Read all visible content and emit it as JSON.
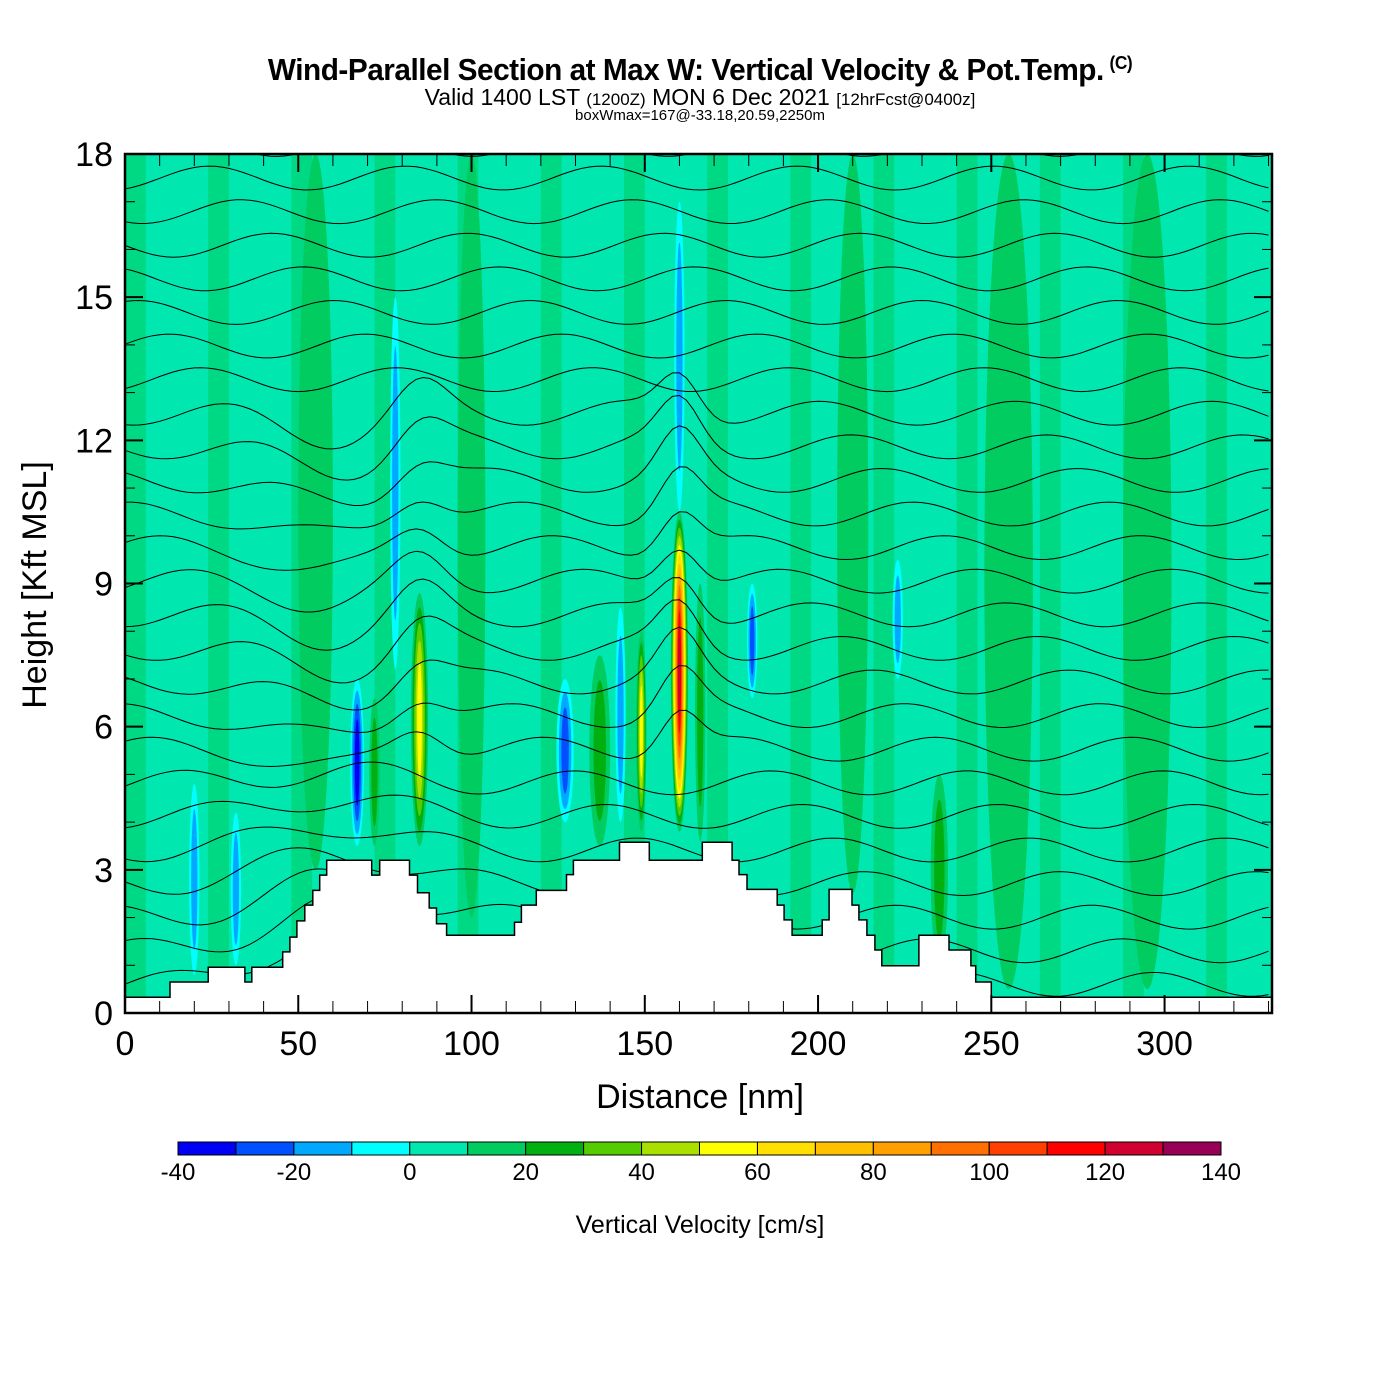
{
  "header": {
    "title": "Wind-Parallel Section at Max W: Vertical Velocity & Pot.Temp.",
    "copyright": "(C)",
    "valid_prefix": "Valid 1400 LST",
    "valid_utc": "(1200Z)",
    "valid_date": "MON 6 Dec 2021",
    "forecast": "[12hrFcst@0400z]",
    "box_wmax": "boxWmax=167@-33.18,20.59,2250m"
  },
  "chart_data": {
    "type": "heatmap",
    "title": "Wind-Parallel Section at Max W: Vertical Velocity & Pot.Temp.",
    "xlabel": "Distance [nm]",
    "ylabel": "Height [Kft MSL]",
    "xlim": [
      0,
      331
    ],
    "ylim": [
      0,
      18
    ],
    "xticks": [
      0,
      50,
      100,
      150,
      200,
      250,
      300
    ],
    "yticks": [
      0,
      3,
      6,
      9,
      12,
      15,
      18
    ],
    "x_minor_step": 10,
    "y_minor_step": 1,
    "colorbar": {
      "label": "Vertical Velocity [cm/s]",
      "placement": "bottom",
      "levels": [
        -40,
        -30,
        -20,
        -10,
        0,
        10,
        20,
        30,
        40,
        50,
        60,
        70,
        80,
        90,
        100,
        110,
        120,
        130,
        140
      ],
      "tick_labels": [
        "-40",
        "-20",
        "0",
        "20",
        "40",
        "60",
        "80",
        "100",
        "120",
        "140"
      ],
      "colors": [
        "#0000f4",
        "#0050ff",
        "#00a8ff",
        "#00ffff",
        "#00e8b0",
        "#00cc60",
        "#00b010",
        "#55cc00",
        "#aae000",
        "#ffff00",
        "#ffe000",
        "#ffc000",
        "#ffa000",
        "#ff7000",
        "#ff4000",
        "#ff0000",
        "#d00030",
        "#980058"
      ]
    },
    "background_value": 2,
    "w_features": [
      {
        "x": 20,
        "y0": 0.8,
        "y1": 4.8,
        "w": 3,
        "value": -15
      },
      {
        "x": 32,
        "y0": 1.0,
        "y1": 4.2,
        "w": 3,
        "value": -15
      },
      {
        "x": 55,
        "y0": 3.0,
        "y1": 18,
        "w": 10,
        "value": 12
      },
      {
        "x": 67,
        "y0": 3.5,
        "y1": 7.0,
        "w": 4,
        "value": -32
      },
      {
        "x": 72,
        "y0": 3.5,
        "y1": 6.6,
        "w": 3,
        "value": 25
      },
      {
        "x": 78,
        "y0": 7.2,
        "y1": 15.0,
        "w": 3,
        "value": -18
      },
      {
        "x": 85,
        "y0": 3.5,
        "y1": 8.8,
        "w": 5,
        "value": 58
      },
      {
        "x": 100,
        "y0": 2.0,
        "y1": 18,
        "w": 8,
        "value": 12
      },
      {
        "x": 127,
        "y0": 4.0,
        "y1": 7.0,
        "w": 5,
        "value": -25
      },
      {
        "x": 137,
        "y0": 3.5,
        "y1": 7.5,
        "w": 6,
        "value": 22
      },
      {
        "x": 143,
        "y0": 4.0,
        "y1": 8.5,
        "w": 3,
        "value": -18
      },
      {
        "x": 149,
        "y0": 3.8,
        "y1": 8.0,
        "w": 3,
        "value": 50
      },
      {
        "x": 160,
        "y0": 3.8,
        "y1": 10.5,
        "w": 5,
        "value": 120
      },
      {
        "x": 160,
        "y0": 10.5,
        "y1": 17.0,
        "w": 3,
        "value": -18
      },
      {
        "x": 166,
        "y0": 3.6,
        "y1": 9.0,
        "w": 3,
        "value": 25
      },
      {
        "x": 181,
        "y0": 6.6,
        "y1": 9.0,
        "w": 3,
        "value": -20
      },
      {
        "x": 210,
        "y0": 2.5,
        "y1": 18,
        "w": 9,
        "value": 14
      },
      {
        "x": 223,
        "y0": 7.0,
        "y1": 9.5,
        "w": 3,
        "value": -18
      },
      {
        "x": 235,
        "y0": 1.0,
        "y1": 5.0,
        "w": 5,
        "value": 22
      },
      {
        "x": 255,
        "y0": 0.5,
        "y1": 18,
        "w": 14,
        "value": 12
      },
      {
        "x": 295,
        "y0": 0.5,
        "y1": 18,
        "w": 14,
        "value": 12
      }
    ],
    "terrain": [
      [
        0,
        0.33
      ],
      [
        13,
        0.33
      ],
      [
        13,
        0.65
      ],
      [
        24,
        0.65
      ],
      [
        24,
        0.96
      ],
      [
        34.6,
        0.96
      ],
      [
        34.6,
        0.65
      ],
      [
        36.6,
        0.65
      ],
      [
        36.6,
        0.96
      ],
      [
        45.5,
        0.96
      ],
      [
        45.5,
        1.28
      ],
      [
        47.6,
        1.28
      ],
      [
        47.6,
        1.59
      ],
      [
        49.6,
        1.59
      ],
      [
        49.6,
        1.93
      ],
      [
        51.9,
        1.93
      ],
      [
        51.9,
        2.26
      ],
      [
        54.2,
        2.26
      ],
      [
        54.2,
        2.57
      ],
      [
        56.2,
        2.57
      ],
      [
        56.2,
        2.89
      ],
      [
        58.2,
        2.89
      ],
      [
        58.2,
        3.2
      ],
      [
        71.2,
        3.2
      ],
      [
        71.2,
        2.89
      ],
      [
        73.5,
        2.89
      ],
      [
        73.5,
        3.2
      ],
      [
        82.1,
        3.2
      ],
      [
        82.1,
        2.89
      ],
      [
        84.4,
        2.89
      ],
      [
        84.4,
        2.52
      ],
      [
        87.8,
        2.52
      ],
      [
        87.8,
        2.2
      ],
      [
        89.9,
        2.2
      ],
      [
        89.9,
        1.87
      ],
      [
        92.8,
        1.87
      ],
      [
        92.8,
        1.63
      ],
      [
        112.4,
        1.63
      ],
      [
        112.4,
        1.9
      ],
      [
        114.4,
        1.9
      ],
      [
        114.4,
        2.26
      ],
      [
        118.7,
        2.26
      ],
      [
        118.7,
        2.57
      ],
      [
        127.4,
        2.57
      ],
      [
        127.4,
        2.9
      ],
      [
        129.4,
        2.9
      ],
      [
        129.4,
        3.2
      ],
      [
        142.7,
        3.2
      ],
      [
        142.7,
        3.58
      ],
      [
        151.3,
        3.58
      ],
      [
        151.3,
        3.2
      ],
      [
        166.6,
        3.2
      ],
      [
        166.6,
        3.58
      ],
      [
        175.2,
        3.58
      ],
      [
        175.2,
        3.2
      ],
      [
        177.2,
        3.2
      ],
      [
        177.2,
        2.9
      ],
      [
        179.5,
        2.9
      ],
      [
        179.5,
        2.59
      ],
      [
        188.2,
        2.59
      ],
      [
        188.2,
        2.26
      ],
      [
        190.2,
        2.26
      ],
      [
        190.2,
        1.95
      ],
      [
        192.5,
        1.95
      ],
      [
        192.5,
        1.63
      ],
      [
        201.2,
        1.63
      ],
      [
        201.2,
        1.95
      ],
      [
        203.2,
        1.95
      ],
      [
        203.2,
        2.59
      ],
      [
        209.8,
        2.59
      ],
      [
        209.8,
        2.26
      ],
      [
        211.8,
        2.26
      ],
      [
        211.8,
        1.95
      ],
      [
        214.1,
        1.95
      ],
      [
        214.1,
        1.63
      ],
      [
        216.4,
        1.63
      ],
      [
        216.4,
        1.32
      ],
      [
        218.4,
        1.32
      ],
      [
        218.4,
        0.99
      ],
      [
        229.1,
        0.99
      ],
      [
        229.1,
        1.63
      ],
      [
        237.8,
        1.63
      ],
      [
        237.8,
        1.32
      ],
      [
        244.1,
        1.32
      ],
      [
        244.1,
        0.99
      ],
      [
        245.5,
        0.99
      ],
      [
        245.5,
        0.65
      ],
      [
        250,
        0.65
      ],
      [
        250,
        0.33
      ],
      [
        331,
        0.33
      ]
    ],
    "isentrope_levels_K": [
      298,
      300,
      302,
      304,
      306,
      308,
      310,
      312,
      314,
      316,
      318,
      320,
      322,
      324,
      326,
      328,
      330,
      332,
      334,
      336,
      338,
      340,
      342,
      344,
      346,
      348
    ]
  }
}
